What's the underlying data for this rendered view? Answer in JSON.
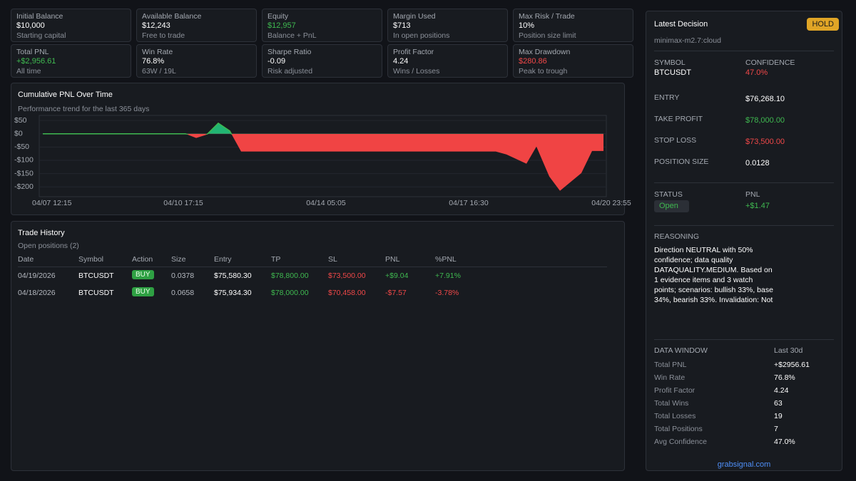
{
  "stats": [
    {
      "label": "Initial Balance",
      "value": "$10,000",
      "sub": "Starting capital"
    },
    {
      "label": "Available Balance",
      "value": "$12,243",
      "sub": "Free to trade"
    },
    {
      "label": "Equity",
      "value": "$12,957",
      "sub": "Balance + PnL",
      "color": "#3fb950"
    },
    {
      "label": "Margin Used",
      "value": "$713",
      "sub": "In open positions"
    },
    {
      "label": "Max Risk / Trade",
      "value": "10%",
      "sub": "Position size limit"
    },
    {
      "label": "Total PNL",
      "value": "+$2,956.61",
      "sub": "All time",
      "color": "#3fb950"
    },
    {
      "label": "Win Rate",
      "value": "76.8%",
      "sub": "63W / 19L"
    },
    {
      "label": "Sharpe Ratio",
      "value": "-0.09",
      "sub": "Risk adjusted"
    },
    {
      "label": "Profit Factor",
      "value": "4.24",
      "sub": "Wins / Losses"
    },
    {
      "label": "Max Drawdown",
      "value": "$280.86",
      "sub": "Peak to trough",
      "color": "#f04848"
    }
  ],
  "chart_data": {
    "type": "area",
    "title": "Cumulative PNL Over Time",
    "subtitle": "Performance trend for the last 365 days",
    "x": [
      0.15,
      10.15,
      10.9,
      11.65,
      12.45,
      13.25,
      14.05,
      31.9,
      32.65,
      34.05,
      34.75,
      35.65,
      36.4,
      37.9,
      38.65,
      39.45
    ],
    "values": [
      0,
      0,
      -16,
      -3,
      40,
      11,
      -67,
      -67,
      -78,
      -113,
      -48,
      -161,
      -215,
      -148,
      -65,
      -65
    ],
    "positive_color": "#21b573",
    "negative_color": "#f04444",
    "line_color": "#3fb950",
    "xlim": [
      0,
      40
    ],
    "xticks": [
      {
        "value": 0,
        "label": "04/07 12:15"
      },
      {
        "value": 10,
        "label": "04/10 17:15"
      },
      {
        "value": 20,
        "label": "04/14 05:05"
      },
      {
        "value": 30,
        "label": "04/17 16:30"
      },
      {
        "value": 40,
        "label": "04/20 23:55"
      }
    ],
    "ylim": [
      -237,
      69
    ],
    "yticks": [
      {
        "value": 50,
        "label": "$50"
      },
      {
        "value": 0,
        "label": "$0"
      },
      {
        "value": -50,
        "label": "-$50"
      },
      {
        "value": -100,
        "label": "-$100"
      },
      {
        "value": -150,
        "label": "-$150"
      },
      {
        "value": -200,
        "label": "-$200"
      }
    ],
    "grid": true
  },
  "trades": {
    "title": "Trade History",
    "subtitle": "Open positions (2)",
    "columns": [
      "Date",
      "Symbol",
      "Action",
      "Size",
      "Entry",
      "TP",
      "SL",
      "PNL",
      "%PNL"
    ],
    "rows": [
      [
        "04/19/2026",
        "BTCUSDT",
        "BUY",
        "0.0378",
        "$75,580.30",
        "$78,800.00",
        "$73,500.00",
        "+$9.04",
        "+7.91%"
      ],
      [
        "04/18/2026",
        "BTCUSDT",
        "BUY",
        "0.0658",
        "$75,934.30",
        "$78,000.00",
        "$70,458.00",
        "-$7.57",
        "-3.78%"
      ]
    ]
  },
  "decision": {
    "title": "Latest Decision",
    "badge": "HOLD",
    "model": "minimax-m2.7:cloud",
    "symbol_label": "SYMBOL",
    "symbol": "BTCUSDT",
    "confidence_label": "CONFIDENCE",
    "confidence": "47.0%",
    "levels": [
      {
        "label": "ENTRY",
        "value": "$76,268.10"
      },
      {
        "label": "TAKE PROFIT",
        "value": "$78,000.00",
        "color": "#3fb950"
      },
      {
        "label": "STOP LOSS",
        "value": "$73,500.00",
        "color": "#f04848"
      },
      {
        "label": "POSITION SIZE",
        "value": "0.0128"
      }
    ],
    "status_label": "STATUS",
    "status": "Open",
    "pnl_label": "PNL",
    "pnl": "+$1.47",
    "reasoning_label": "REASONING",
    "reasoning": "Direction NEUTRAL with 50% confidence; data quality DATAQUALITY.MEDIUM. Based on 1 evidence items and 3 watch points; scenarios: bullish 33%, base 34%, bearish 33%. Invalidation: Not",
    "window_label": "DATA WINDOW",
    "window": "Last 30d",
    "window_rows": [
      [
        "Total PNL",
        "+$2956.61"
      ],
      [
        "Win Rate",
        "76.8%"
      ],
      [
        "Profit Factor",
        "4.24"
      ],
      [
        "Total Wins",
        "63"
      ],
      [
        "Total Losses",
        "19"
      ],
      [
        "Total Positions",
        "7"
      ],
      [
        "Avg Confidence",
        "47.0%"
      ]
    ],
    "footer": "grabsignal.com"
  }
}
